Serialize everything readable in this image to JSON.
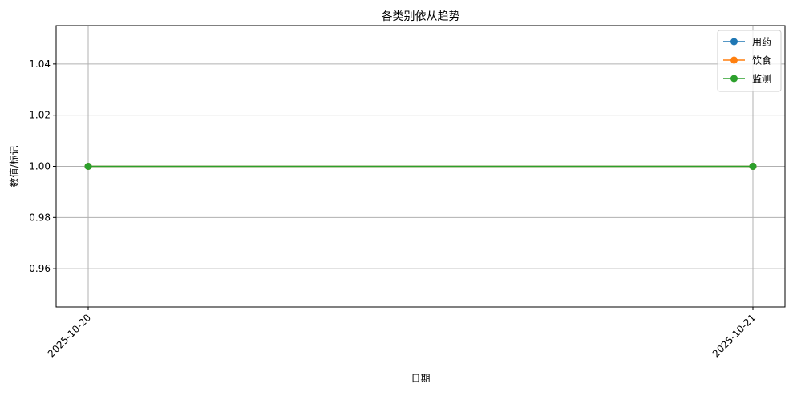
{
  "chart_data": {
    "type": "line",
    "title": "各类别依从趋势",
    "xlabel": "日期",
    "ylabel": "数值/标记",
    "x": [
      "2025-10-20",
      "2025-10-21"
    ],
    "ylim": [
      0.945,
      1.055
    ],
    "yticks": [
      "0.96",
      "0.98",
      "1.00",
      "1.02",
      "1.04"
    ],
    "grid": true,
    "legend_position": "top-right",
    "series": [
      {
        "name": "用药",
        "color": "#1f77b4",
        "values": [
          1,
          1
        ]
      },
      {
        "name": "饮食",
        "color": "#ff7f0e",
        "values": [
          1,
          1
        ]
      },
      {
        "name": "监测",
        "color": "#2ca02c",
        "values": [
          1,
          1
        ]
      }
    ]
  }
}
